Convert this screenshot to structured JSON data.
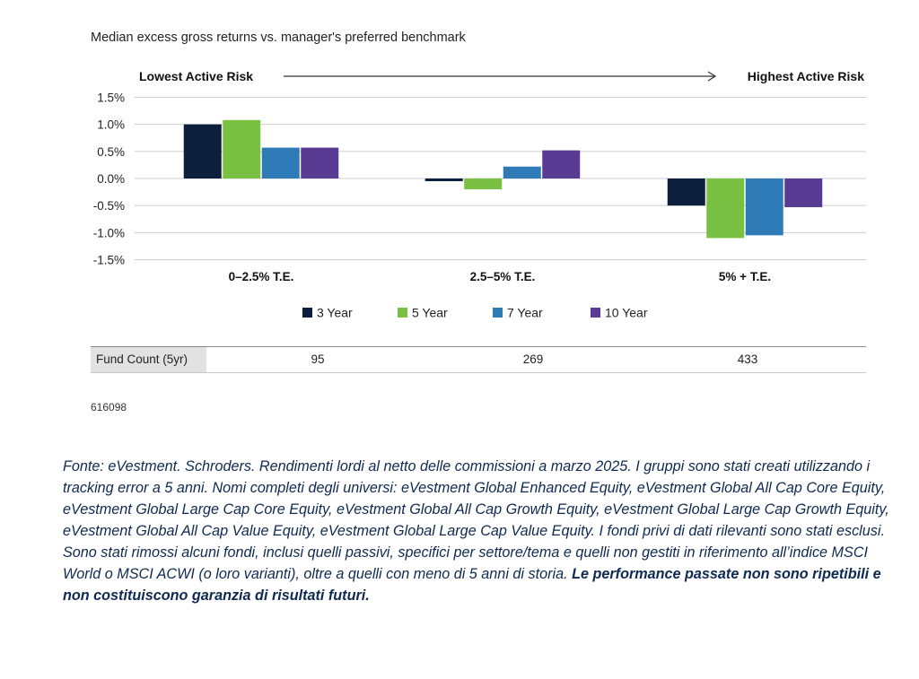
{
  "subtitle": "Median excess gross returns vs. manager's preferred benchmark",
  "risk_axis": {
    "left_label": "Lowest Active Risk",
    "right_label": "Highest Active Risk"
  },
  "chart_data": {
    "type": "bar",
    "categories": [
      "0–2.5% T.E.",
      "2.5–5% T.E.",
      "5% + T.E."
    ],
    "series": [
      {
        "name": "3 Year",
        "color": "#0e1f3d",
        "values": [
          1.0,
          -0.05,
          -0.5
        ]
      },
      {
        "name": "5 Year",
        "color": "#7ac143",
        "values": [
          1.08,
          -0.2,
          -1.1
        ]
      },
      {
        "name": "7 Year",
        "color": "#2e7bb8",
        "values": [
          0.57,
          0.22,
          -1.05
        ]
      },
      {
        "name": "10 Year",
        "color": "#5a3b94",
        "values": [
          0.57,
          0.52,
          -0.53
        ]
      }
    ],
    "yticks": [
      "1.5%",
      "1.0%",
      "0.5%",
      "0.0%",
      "-0.5%",
      "-1.0%",
      "-1.5%"
    ],
    "ylim": [
      -1.5,
      1.5
    ],
    "grid": true,
    "legend_position": "bottom"
  },
  "fund_count": {
    "label": "Fund Count (5yr)",
    "values": [
      "95",
      "269",
      "433"
    ]
  },
  "chart_id": "616098",
  "source": {
    "text": "Fonte: eVestment. Schroders. Rendimenti lordi al netto delle commissioni a marzo 2025. I gruppi sono stati creati utilizzando i tracking error a 5 anni. Nomi completi degli universi: eVestment Global Enhanced Equity, eVestment Global All Cap Core Equity, eVestment Global Large Cap Core Equity, eVestment Global All Cap Growth Equity, eVestment Global Large Cap Growth Equity, eVestment Global All Cap Value Equity, eVestment Global Large Cap Value Equity. I fondi privi di dati rilevanti sono stati esclusi. Sono stati rimossi alcuni fondi, inclusi quelli passivi, specifici per settore/tema e quelli non gestiti in riferimento all’indice MSCI World o MSCI ACWI (o loro varianti), oltre a quelli con meno di 5 anni di storia.",
    "disclaimer": "Le performance passate non sono ripetibili e non costituiscono garanzia di risultati futuri."
  }
}
